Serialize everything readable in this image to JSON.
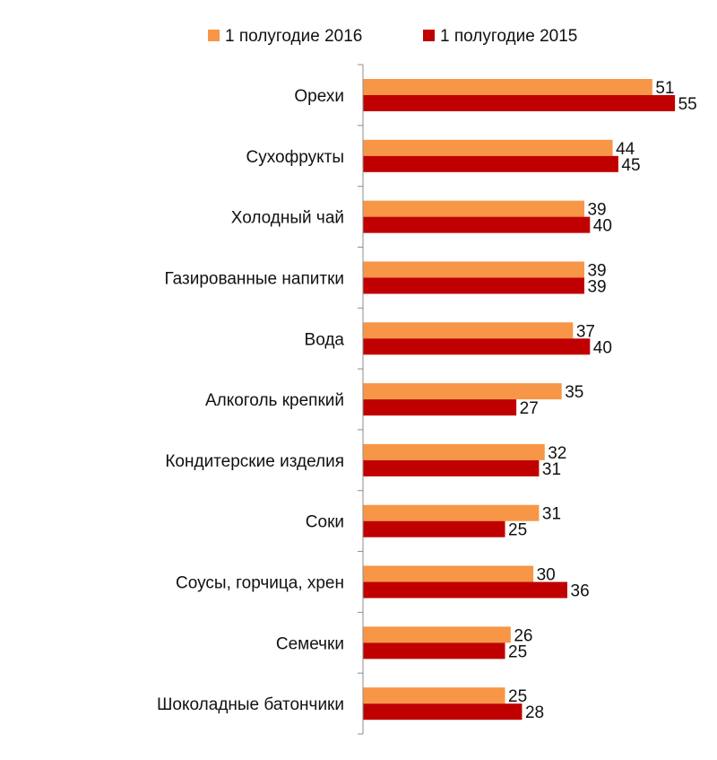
{
  "chart_data": {
    "type": "bar",
    "orientation": "horizontal",
    "categories": [
      "Орехи",
      "Сухофрукты",
      "Холодный чай",
      "Газированные напитки",
      "Вода",
      "Алкоголь крепкий",
      "Кондитерские изделия",
      "Соки",
      "Соусы, горчица, хрен",
      "Семечки",
      "Шоколадные батончики"
    ],
    "series": [
      {
        "name": "1 полугодие 2016",
        "color": "#F79646",
        "values": [
          51,
          44,
          39,
          39,
          37,
          35,
          32,
          31,
          30,
          26,
          25
        ]
      },
      {
        "name": "1 полугодие 2015",
        "color": "#C00000",
        "values": [
          55,
          45,
          40,
          39,
          40,
          27,
          31,
          25,
          36,
          25,
          28
        ]
      }
    ],
    "xlim": [
      0,
      60
    ],
    "grid": false,
    "data_labels": true,
    "legend_position": "top"
  }
}
